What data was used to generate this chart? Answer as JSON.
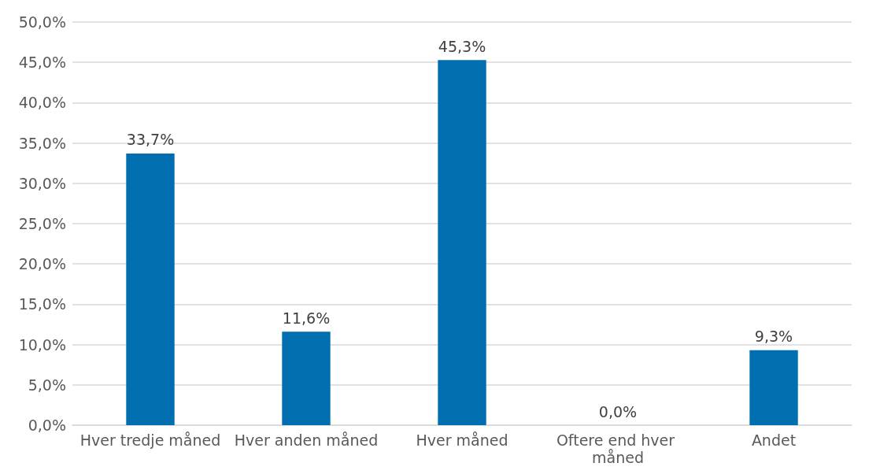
{
  "chart_data": {
    "type": "bar",
    "categories": [
      "Hver tredje måned",
      "Hver anden måned",
      "Hver måned",
      "Oftere end hver måned",
      "Andet"
    ],
    "values": [
      33.7,
      11.6,
      45.3,
      0.0,
      9.3
    ],
    "value_labels": [
      "33,7%",
      "11,6%",
      "45,3%",
      "0,0%",
      "9,3%"
    ],
    "color": "#006eaf",
    "ylim": [
      0,
      50
    ],
    "yticks": [
      {
        "value": 0,
        "label": "0,0%"
      },
      {
        "value": 5,
        "label": "5,0%"
      },
      {
        "value": 10,
        "label": "10,0%"
      },
      {
        "value": 15,
        "label": "15,0%"
      },
      {
        "value": 20,
        "label": "20,0%"
      },
      {
        "value": 25,
        "label": "25,0%"
      },
      {
        "value": 30,
        "label": "30,0%"
      },
      {
        "value": 35,
        "label": "35,0%"
      },
      {
        "value": 40,
        "label": "40,0%"
      },
      {
        "value": 45,
        "label": "45,0%"
      },
      {
        "value": 50,
        "label": "50,0%"
      }
    ],
    "grid": "y"
  }
}
